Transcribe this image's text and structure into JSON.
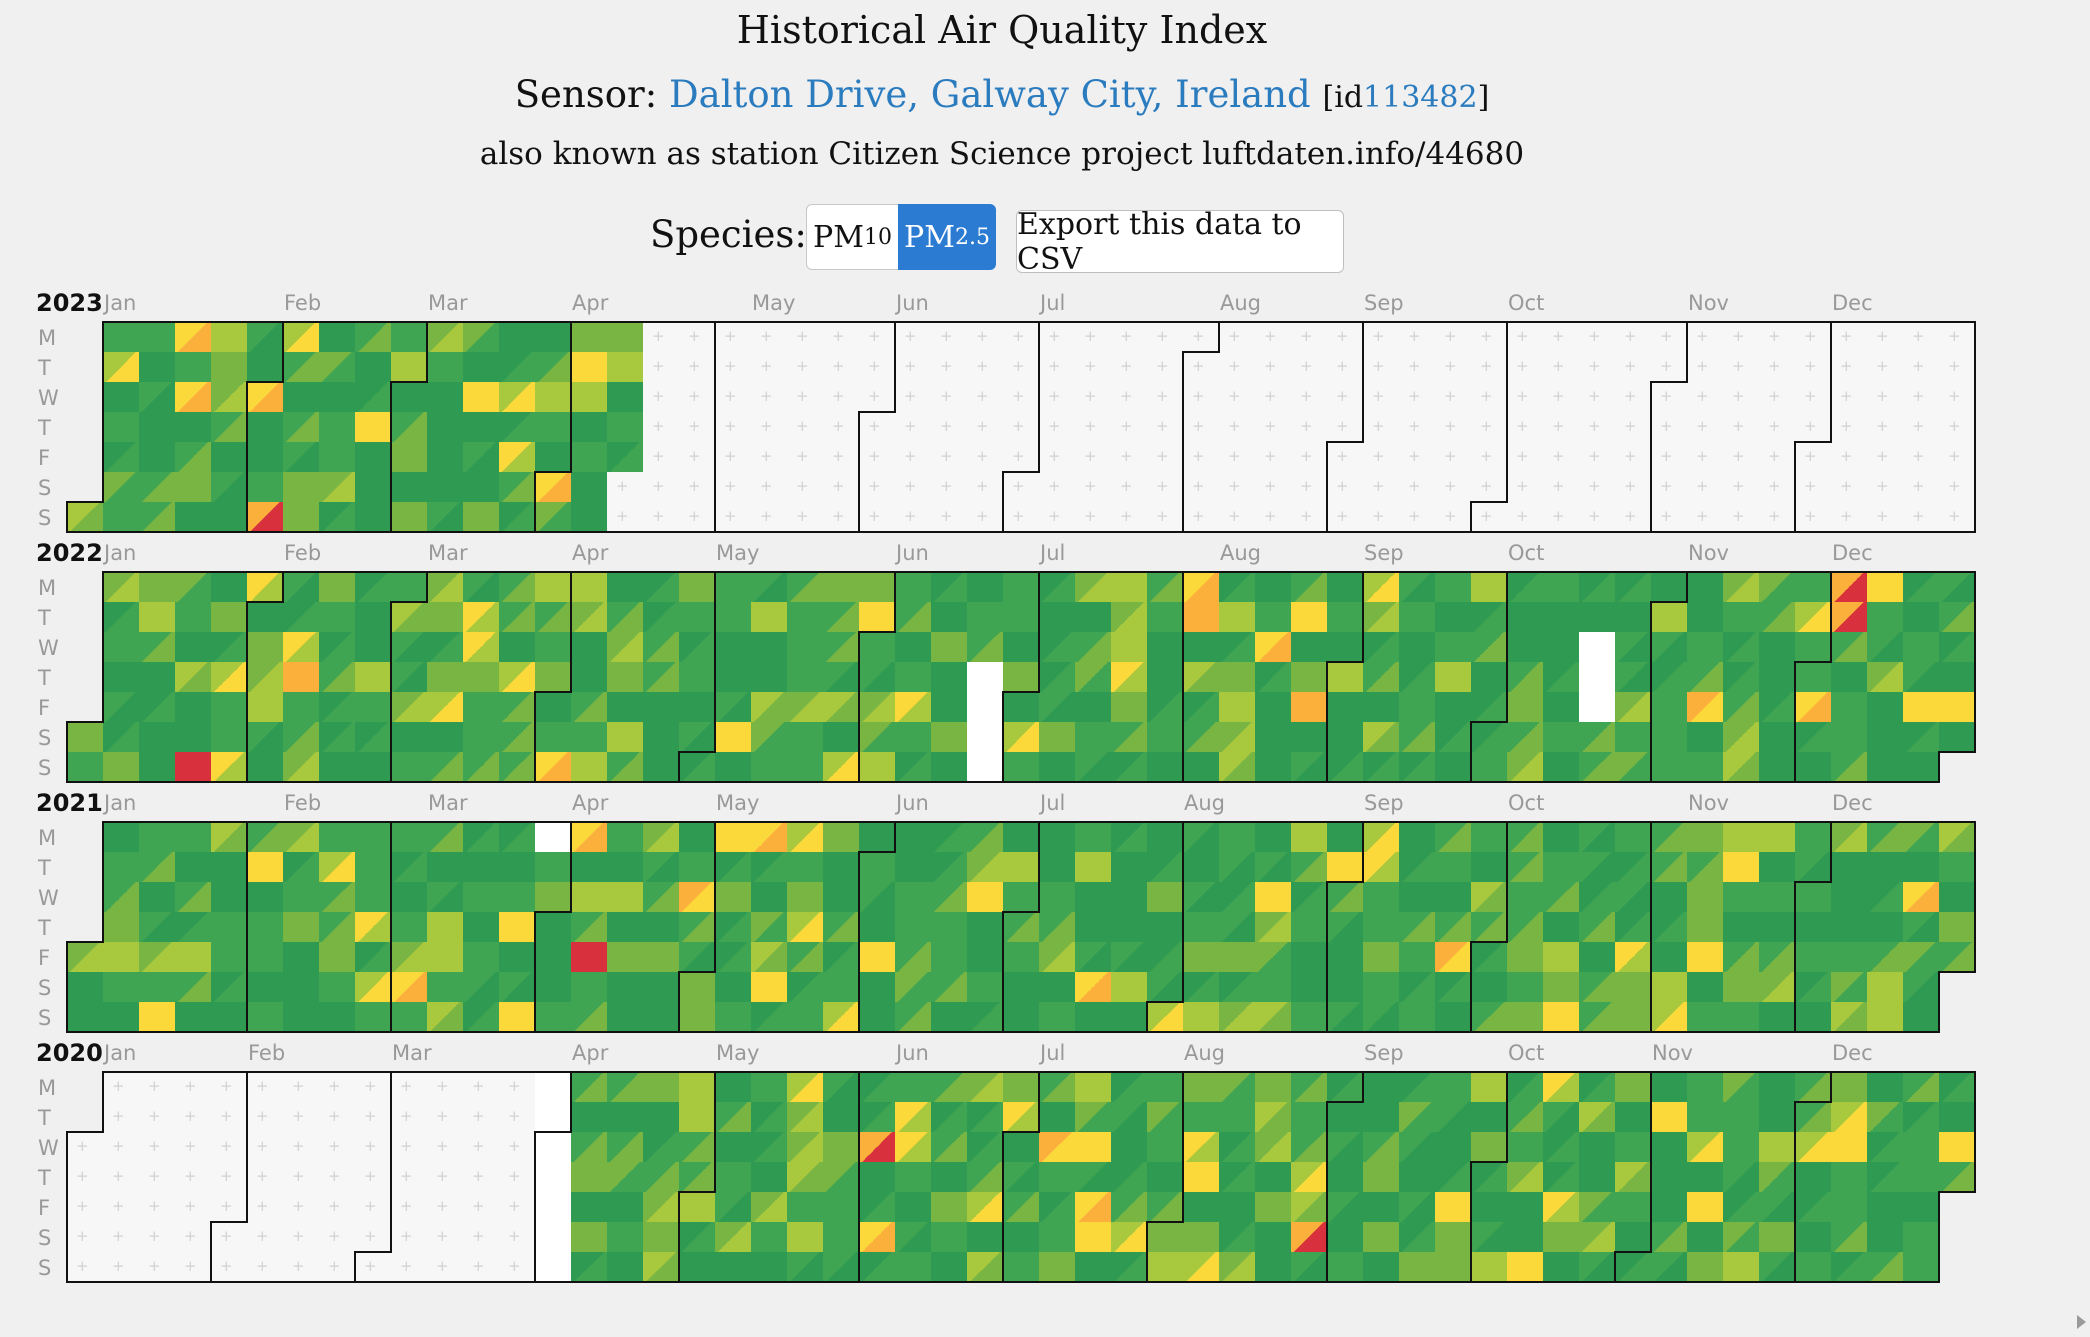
{
  "header": {
    "title": "Historical Air Quality Index",
    "sensor_prefix": "Sensor:",
    "sensor_name": "Dalton Drive, Galway City, Ireland",
    "id_prefix": "[id",
    "sensor_id": "113482",
    "id_suffix": "]",
    "aka": "also known as station Citizen Science project luftdaten.info/44680"
  },
  "controls": {
    "species_label": "Species:",
    "pm10_main": "PM",
    "pm10_sub": "10",
    "pm25_main": "PM",
    "pm25_sub": "2.5",
    "selected": "PM2.5",
    "export_label": "Export this data to CSV"
  },
  "calendar": {
    "day_labels": [
      "M",
      "T",
      "W",
      "T",
      "F",
      "S",
      "S"
    ],
    "month_labels": [
      "Jan",
      "Feb",
      "Mar",
      "Apr",
      "May",
      "Jun",
      "Jul",
      "Aug",
      "Sep",
      "Oct",
      "Nov",
      "Dec"
    ],
    "colors": {
      "good_dark": "#2e9a52",
      "good": "#3fa552",
      "moderate_green": "#78b543",
      "moderate_yellowgreen": "#a8c83e",
      "moderate_yellow": "#fcd93b",
      "unhealthy_sensitive": "#fbb03b",
      "unhealthy": "#d9303e",
      "no_data": "#ffffff",
      "future": "#f7f7f7"
    },
    "years": [
      {
        "year": "2023",
        "data_through": "2023-04-14",
        "missing_ranges": []
      },
      {
        "year": "2022",
        "data_through": "2022-12-31",
        "missing_ranges": [
          [
            "2022-06-23",
            "2022-06-26"
          ],
          [
            "2022-10-19",
            "2022-10-21"
          ]
        ]
      },
      {
        "year": "2021",
        "data_through": "2021-12-31",
        "missing_ranges": [
          [
            "2021-03-29",
            "2021-03-29"
          ]
        ]
      },
      {
        "year": "2020",
        "data_through": "2020-12-31",
        "data_from": "2020-04-06",
        "missing_ranges": [
          [
            "2020-03-30",
            "2020-04-05"
          ]
        ]
      }
    ]
  }
}
